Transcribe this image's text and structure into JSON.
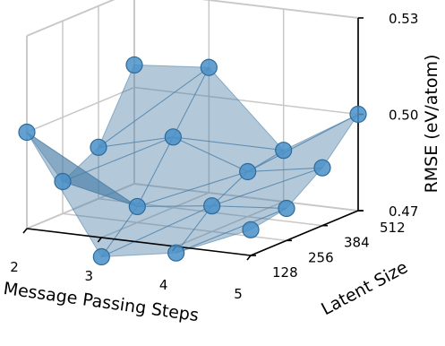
{
  "chart_data": {
    "type": "surface3d",
    "title": "",
    "xlabel": "Message Passing Steps",
    "ylabel": "Latent Size",
    "zlabel": "RMSE (eV/atom)",
    "x_ticks": [
      "2",
      "3",
      "4",
      "5"
    ],
    "y_ticks": [
      "128",
      "256",
      "384",
      "512"
    ],
    "z_ticks": [
      "0.47",
      "0.50",
      "0.53"
    ],
    "zlim": [
      0.47,
      0.53
    ],
    "grid": true,
    "colors": {
      "surface": "#4a7ea8",
      "points": "#4a90c8"
    },
    "points": [
      {
        "steps": 2,
        "latent": 128,
        "rmse": 0.5
      },
      {
        "steps": 2,
        "latent": 256,
        "rmse": 0.48
      },
      {
        "steps": 2,
        "latent": 384,
        "rmse": 0.486
      },
      {
        "steps": 2,
        "latent": 512,
        "rmse": 0.507
      },
      {
        "steps": 3,
        "latent": 128,
        "rmse": 0.464
      },
      {
        "steps": 3,
        "latent": 256,
        "rmse": 0.475
      },
      {
        "steps": 3,
        "latent": 384,
        "rmse": 0.492
      },
      {
        "steps": 3,
        "latent": 512,
        "rmse": 0.509
      },
      {
        "steps": 4,
        "latent": 128,
        "rmse": 0.468
      },
      {
        "steps": 4,
        "latent": 256,
        "rmse": 0.478
      },
      {
        "steps": 4,
        "latent": 384,
        "rmse": 0.484
      },
      {
        "steps": 4,
        "latent": 512,
        "rmse": 0.486
      },
      {
        "steps": 5,
        "latent": 128,
        "rmse": 0.478
      },
      {
        "steps": 5,
        "latent": 256,
        "rmse": 0.48
      },
      {
        "steps": 5,
        "latent": 384,
        "rmse": 0.488
      },
      {
        "steps": 5,
        "latent": 512,
        "rmse": 0.5
      }
    ]
  }
}
